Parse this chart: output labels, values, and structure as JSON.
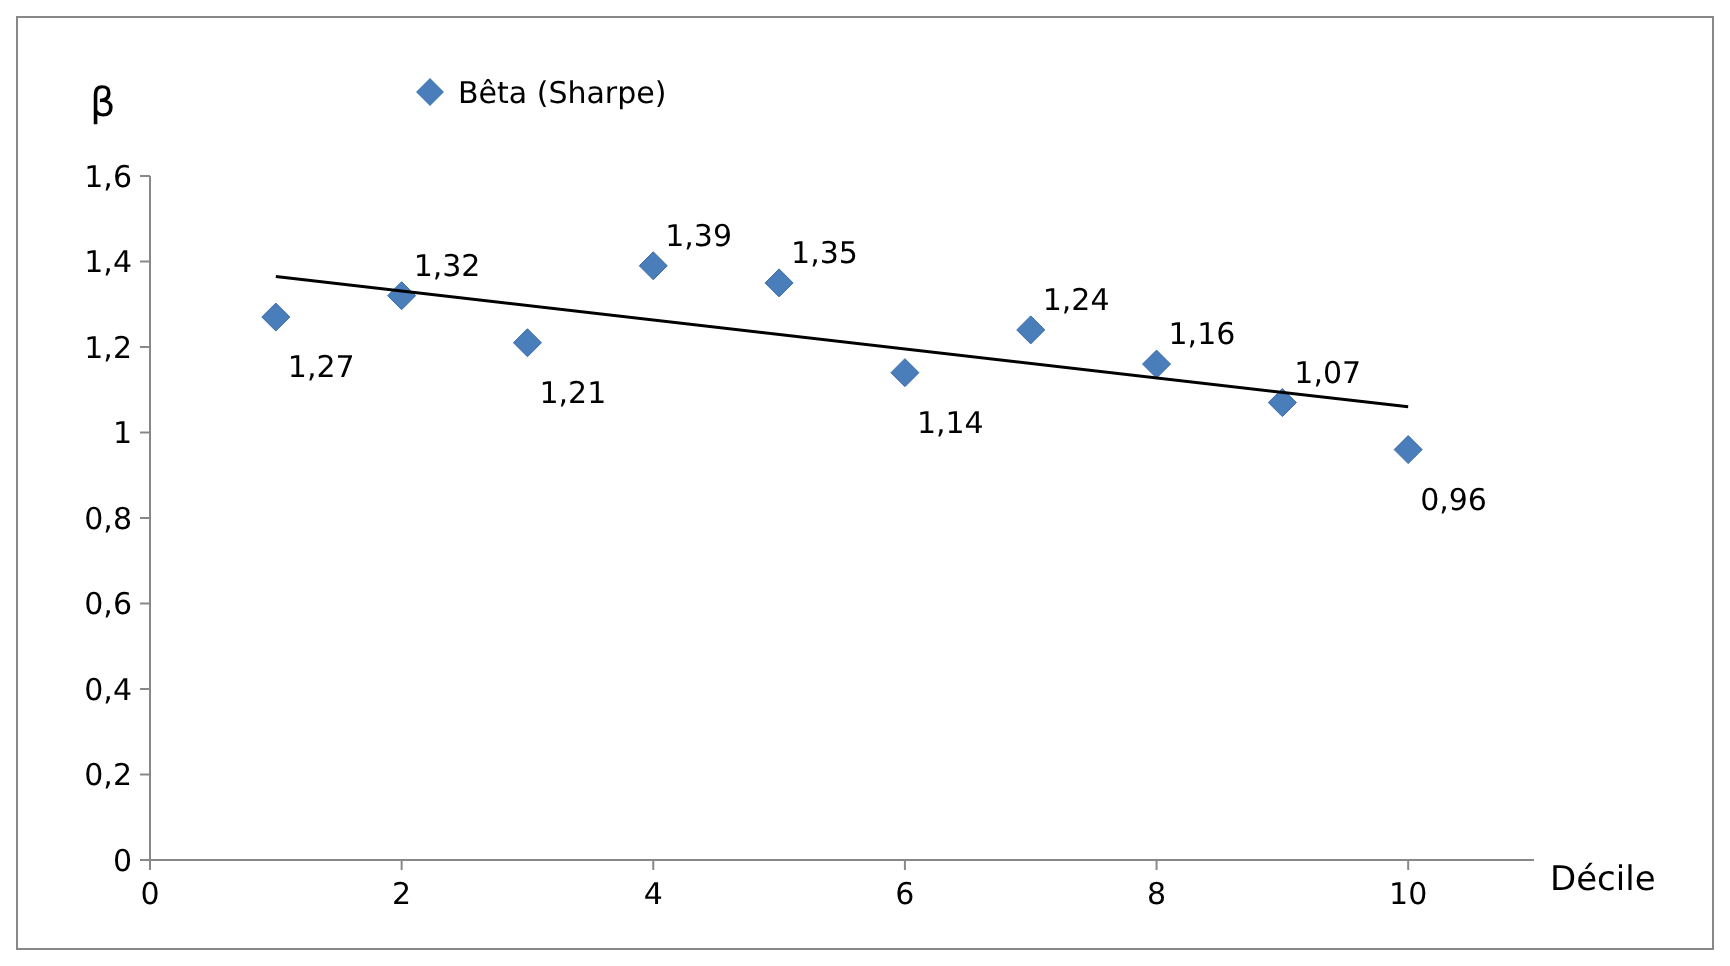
{
  "chart_data": {
    "type": "scatter",
    "xlabel": "Décile",
    "ylabel": "β",
    "x": [
      1,
      2,
      3,
      4,
      5,
      6,
      7,
      8,
      9,
      10
    ],
    "xlim": [
      0,
      11
    ],
    "xticks": [
      0,
      2,
      4,
      6,
      8,
      10
    ],
    "ylim": [
      0,
      1.6
    ],
    "yticks": [
      0,
      {
        "value": 0.2,
        "label": "0,2"
      },
      {
        "value": 0.4,
        "label": "0,4"
      },
      {
        "value": 0.6,
        "label": "0,6"
      },
      {
        "value": 0.8,
        "label": "0,8"
      },
      1,
      {
        "value": 1.2,
        "label": "1,2"
      },
      {
        "value": 1.4,
        "label": "1,4"
      },
      {
        "value": 1.6,
        "label": "1,6"
      }
    ],
    "grid": false,
    "legend": "top left",
    "series": [
      {
        "name": "Bêta (Sharpe)",
        "marker": "diamond",
        "color": "#4a7ebb",
        "values": [
          1.27,
          1.32,
          1.21,
          1.39,
          1.35,
          1.14,
          1.24,
          1.16,
          1.07,
          0.96
        ],
        "value_labels": [
          "1,27",
          "1,32",
          "1,21",
          "1,39",
          "1,35",
          "1,14",
          "1,24",
          "1,16",
          "1,07",
          "0,96"
        ]
      },
      {
        "type": "line",
        "color": "#000000",
        "x": [
          1,
          10
        ],
        "values": [
          1.365,
          1.06
        ],
        "line_style": "solid"
      }
    ]
  }
}
